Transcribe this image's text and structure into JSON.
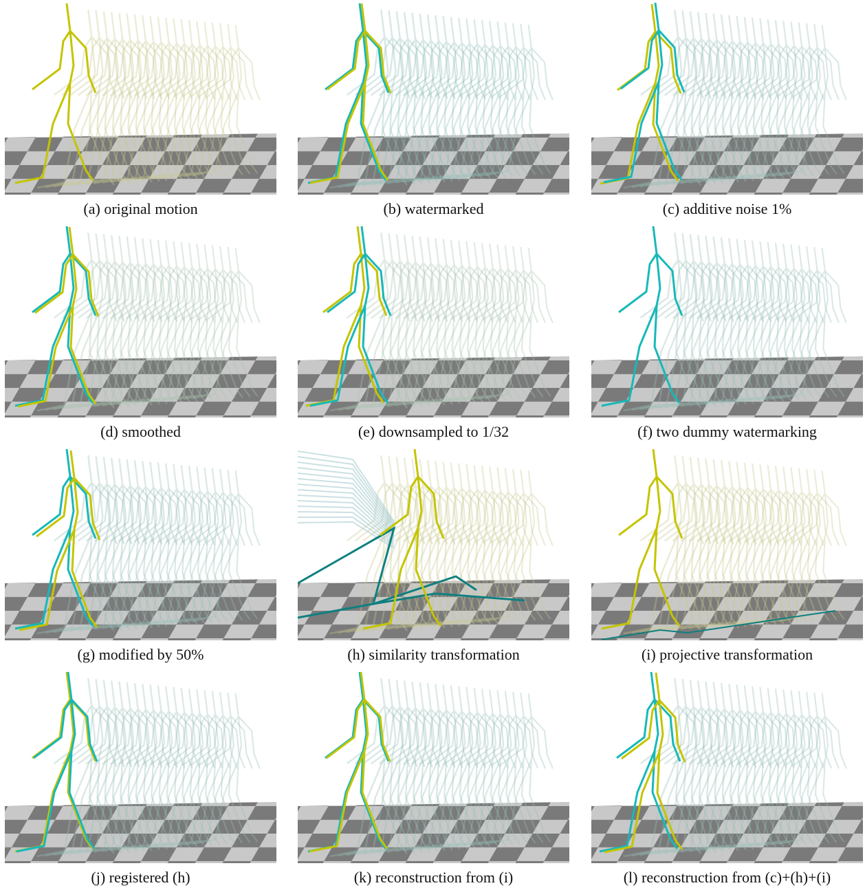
{
  "panels": [
    {
      "caption": "(a) original motion"
    },
    {
      "caption": "(b) watermarked"
    },
    {
      "caption": "(c) additive noise 1%"
    },
    {
      "caption": "(d) smoothed"
    },
    {
      "caption": "(e) downsampled to 1/32"
    },
    {
      "caption": "(f) two dummy watermarking"
    },
    {
      "caption": "(g) modified by 50%"
    },
    {
      "caption": "(h) similarity transformation"
    },
    {
      "caption": "(i) projective transformation"
    },
    {
      "caption": "(j) registered (h)"
    },
    {
      "caption": "(k) reconstruction from (i)"
    },
    {
      "caption": "(l) reconstruction from (c)+(h)+(i)"
    }
  ]
}
